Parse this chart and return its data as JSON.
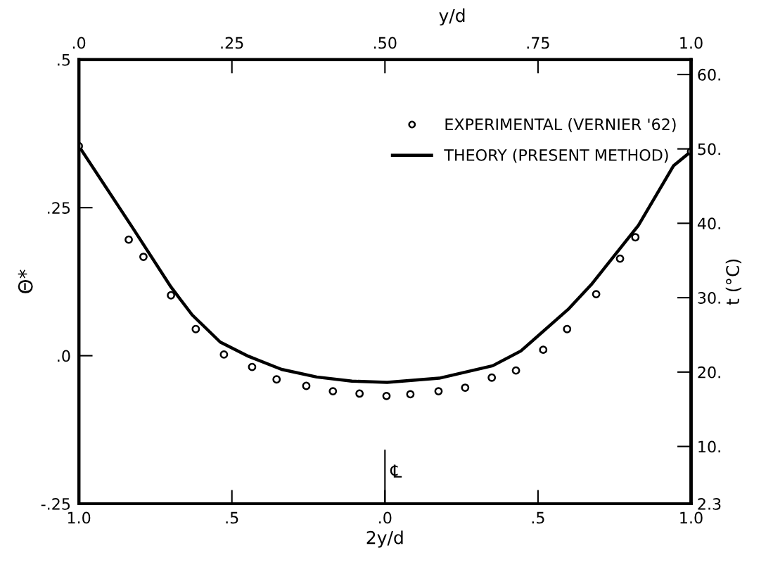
{
  "chart_data": {
    "type": "scatter",
    "xlabel": "2y/d",
    "x2label": "y/d",
    "ylabel": "Θ*",
    "y2label": "t (°C)",
    "xlim": [
      -1,
      1
    ],
    "xticks": [
      {
        "value": -1,
        "label": "1.0"
      },
      {
        "value": -0.5,
        "label": ".5"
      },
      {
        "value": 0,
        "label": ".0"
      },
      {
        "value": 0.5,
        "label": ".5"
      },
      {
        "value": 1,
        "label": "1.0"
      }
    ],
    "x2lim": [
      0,
      1
    ],
    "x2ticks": [
      {
        "value": 0,
        "label": ".0"
      },
      {
        "value": 0.25,
        "label": ".25"
      },
      {
        "value": 0.5,
        "label": ".50"
      },
      {
        "value": 0.75,
        "label": ".75"
      },
      {
        "value": 1,
        "label": "1.0"
      }
    ],
    "ylim": [
      -0.25,
      0.5
    ],
    "yticks": [
      {
        "value": -0.25,
        "label": "-.25"
      },
      {
        "value": 0,
        "label": ".0"
      },
      {
        "value": 0.25,
        "label": ".25"
      },
      {
        "value": 0.5,
        "label": ".5"
      }
    ],
    "y2lim": [
      2.3,
      62
    ],
    "y2ticks": [
      {
        "value": 2.3,
        "label": "2.3"
      },
      {
        "value": 10,
        "label": "10."
      },
      {
        "value": 20,
        "label": "20."
      },
      {
        "value": 30,
        "label": "30."
      },
      {
        "value": 40,
        "label": "40."
      },
      {
        "value": 50,
        "label": "50."
      },
      {
        "value": 60,
        "label": "60."
      }
    ],
    "grid": false,
    "legend": "top right",
    "ref_lines": [
      {
        "axis": "x",
        "value": 0,
        "label": "℄"
      }
    ],
    "series": [
      {
        "name": "EXPERIMENTAL (VERNIER '62)",
        "marker": "circle",
        "color": "#000000",
        "x": [
          -1,
          -0.837,
          -0.789,
          -0.699,
          -0.618,
          -0.526,
          -0.434,
          -0.354,
          -0.257,
          -0.17,
          -0.083,
          0.005,
          0.083,
          0.175,
          0.262,
          0.349,
          0.428,
          0.517,
          0.595,
          0.69,
          0.768,
          0.818,
          1
        ],
        "values": [
          0.354,
          0.196,
          0.167,
          0.102,
          0.045,
          0.002,
          -0.019,
          -0.04,
          -0.051,
          -0.06,
          -0.064,
          -0.068,
          -0.065,
          -0.06,
          -0.054,
          -0.037,
          -0.025,
          0.01,
          0.045,
          0.104,
          0.164,
          0.2,
          0.345
        ]
      },
      {
        "name": "THEORY (PRESENT METHOD)",
        "type": "line",
        "marker": "none",
        "line_style": "solid",
        "color": "#000000",
        "x": [
          -1,
          -0.823,
          -0.699,
          -0.63,
          -0.538,
          -0.446,
          -0.338,
          -0.223,
          -0.108,
          0.007,
          0.177,
          0.352,
          0.444,
          0.598,
          0.674,
          0.828,
          0.943,
          1
        ],
        "values": [
          0.354,
          0.215,
          0.116,
          0.069,
          0.023,
          -0.001,
          -0.023,
          -0.036,
          -0.043,
          -0.045,
          -0.038,
          -0.017,
          0.008,
          0.078,
          0.12,
          0.22,
          0.321,
          0.345
        ]
      }
    ]
  }
}
